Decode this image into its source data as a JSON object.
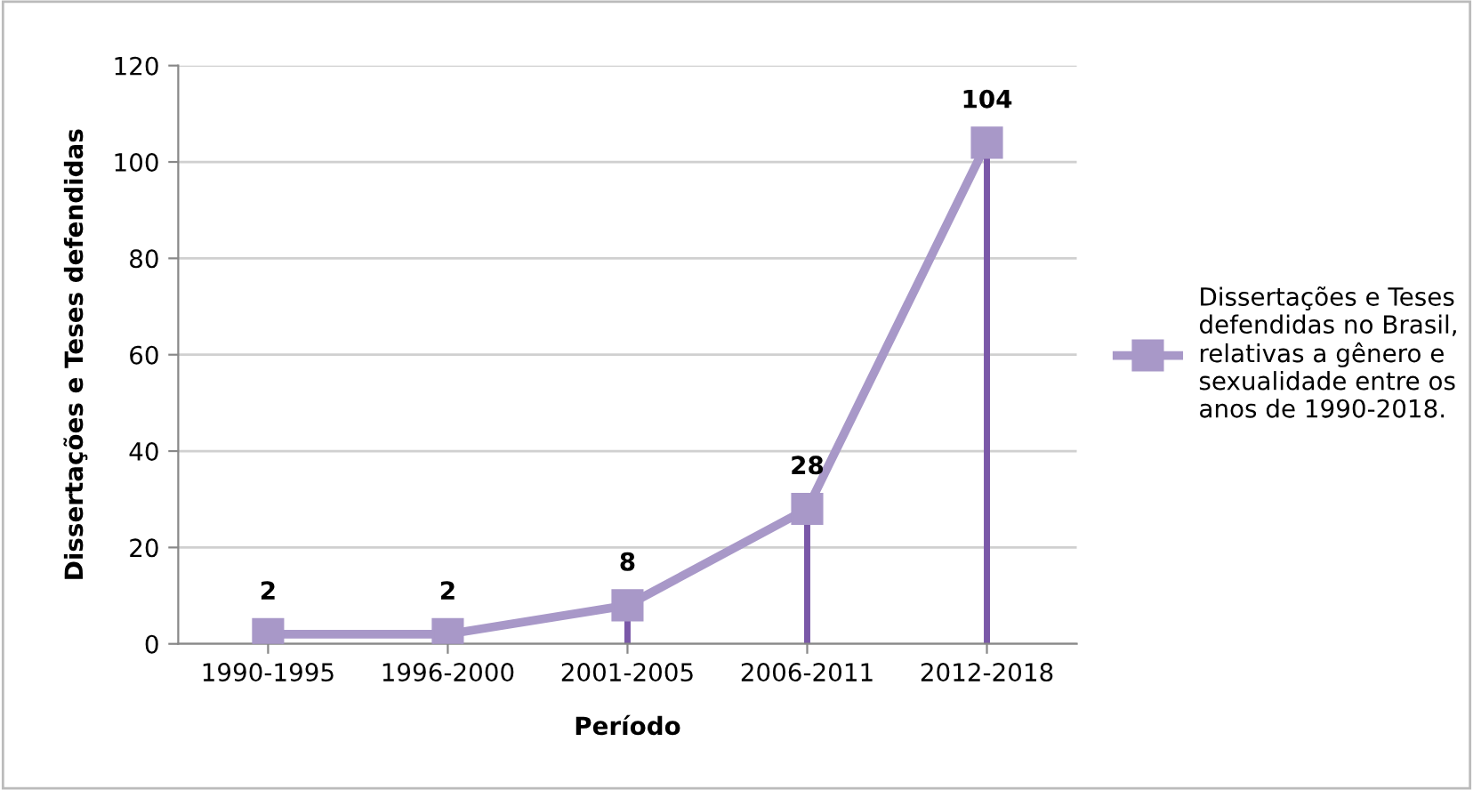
{
  "chart_data": {
    "type": "line",
    "xlabel": "Período",
    "ylabel": "Dissertações e Teses defendidas",
    "categories": [
      "1990-1995",
      "1996-2000",
      "2001-2005",
      "2006-2011",
      "2012-2018"
    ],
    "series": [
      {
        "name": "Dissertações e Teses\ndefendidas no Brasil,\nrelativas a gênero e\nsexualidade entre os\nanos de 1990-2018.",
        "color": "#a898c8",
        "values": [
          2,
          2,
          8,
          28,
          104
        ],
        "errors": [
          [
            0,
            2
          ],
          [
            0,
            2
          ],
          [
            0,
            8
          ],
          [
            0,
            28
          ],
          [
            0,
            104
          ]
        ]
      }
    ],
    "ylim": [
      0,
      120
    ],
    "yticks": [
      0,
      20,
      40,
      60,
      80,
      100,
      120
    ],
    "grid": "y",
    "legend": "right",
    "marker": "square",
    "line_style": "solid",
    "data_labels": true
  }
}
